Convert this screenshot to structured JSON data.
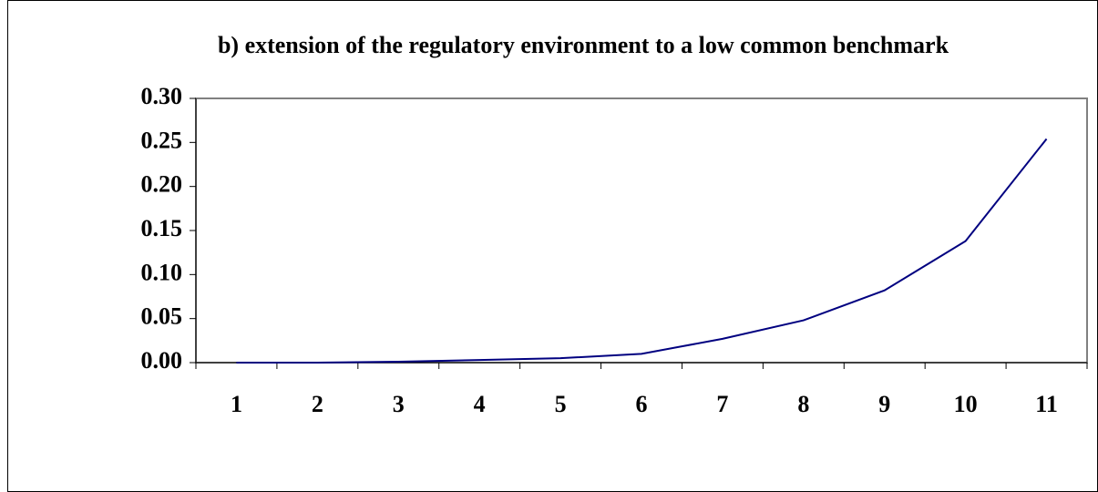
{
  "chart_data": {
    "type": "line",
    "title": "b) extension of the regulatory  environment to a low common  benchmark",
    "categories": [
      "1",
      "2",
      "3",
      "4",
      "5",
      "6",
      "7",
      "8",
      "9",
      "10",
      "11"
    ],
    "values": [
      0,
      0,
      0.001,
      0.003,
      0.005,
      0.01,
      0.027,
      0.048,
      0.082,
      0.138,
      0.254
    ],
    "color": "#000080",
    "ylim": [
      0,
      0.3
    ],
    "yticks": [
      {
        "value": 0,
        "label": "0.00"
      },
      {
        "value": 0.05,
        "label": "0.05"
      },
      {
        "value": 0.1,
        "label": "0.10"
      },
      {
        "value": 0.15,
        "label": "0.15"
      },
      {
        "value": 0.2,
        "label": "0.20"
      },
      {
        "value": 0.25,
        "label": "0.25"
      },
      {
        "value": 0.3,
        "label": "0.30"
      }
    ],
    "grid": false
  }
}
